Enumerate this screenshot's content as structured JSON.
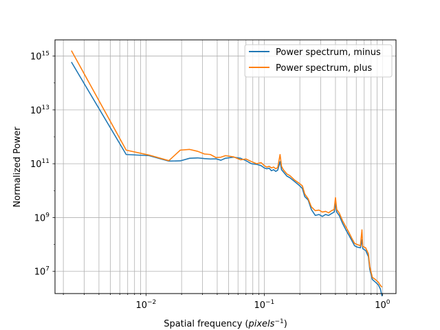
{
  "chart_data": {
    "type": "line",
    "xlabel": "Spatial frequency (pixels⁻¹)",
    "xlabel_main": "Spatial frequency (",
    "xlabel_italic": "pixels",
    "xlabel_sup": "−1",
    "xlabel_close": ")",
    "ylabel": "Normalized Power",
    "x_scale": "log",
    "y_scale": "log",
    "xlim": [
      0.0017,
      1.3
    ],
    "ylim": [
      1500000,
      4000000000000000.0
    ],
    "x_ticks": [
      {
        "base": "10",
        "exp": "−2",
        "value": 0.01
      },
      {
        "base": "10",
        "exp": "−1",
        "value": 0.1
      },
      {
        "base": "10",
        "exp": "0",
        "value": 1
      }
    ],
    "y_ticks": [
      {
        "base": "10",
        "exp": "7",
        "value": 10000000.0
      },
      {
        "base": "10",
        "exp": "9",
        "value": 1000000000.0
      },
      {
        "base": "10",
        "exp": "11",
        "value": 100000000000.0
      },
      {
        "base": "10",
        "exp": "13",
        "value": 10000000000000.0
      },
      {
        "base": "10",
        "exp": "15",
        "value": 1000000000000000.0
      }
    ],
    "grid": "both major and minor (x), major (y)",
    "legend_position": "upper right",
    "series": [
      {
        "name": "Power spectrum, minus",
        "color": "#1f77b4",
        "points": [
          [
            0.00234,
            600000000000000.0
          ],
          [
            0.0068,
            220000000000.0
          ],
          [
            0.0106,
            200000000000.0
          ],
          [
            0.0156,
            125000000000.0
          ],
          [
            0.0195,
            128000000000.0
          ],
          [
            0.0234,
            160000000000.0
          ],
          [
            0.0273,
            165000000000.0
          ],
          [
            0.0312,
            155000000000.0
          ],
          [
            0.035,
            150000000000.0
          ],
          [
            0.039,
            152000000000.0
          ],
          [
            0.043,
            135000000000.0
          ],
          [
            0.047,
            160000000000.0
          ],
          [
            0.055,
            175000000000.0
          ],
          [
            0.063,
            160000000000.0
          ],
          [
            0.07,
            130000000000.0
          ],
          [
            0.078,
            100000000000.0
          ],
          [
            0.086,
            95000000000.0
          ],
          [
            0.094,
            85000000000.0
          ],
          [
            0.1,
            70000000000.0
          ],
          [
            0.105,
            65000000000.0
          ],
          [
            0.11,
            68000000000.0
          ],
          [
            0.115,
            55000000000.0
          ],
          [
            0.12,
            60000000000.0
          ],
          [
            0.125,
            52000000000.0
          ],
          [
            0.13,
            58000000000.0
          ],
          [
            0.136,
            120000000000.0
          ],
          [
            0.14,
            60000000000.0
          ],
          [
            0.145,
            50000000000.0
          ],
          [
            0.155,
            35000000000.0
          ],
          [
            0.165,
            30000000000.0
          ],
          [
            0.18,
            22000000000.0
          ],
          [
            0.2,
            15000000000.0
          ],
          [
            0.21,
            12000000000.0
          ],
          [
            0.22,
            6000000000.0
          ],
          [
            0.235,
            4500000000.0
          ],
          [
            0.25,
            2000000000.0
          ],
          [
            0.27,
            1200000000.0
          ],
          [
            0.29,
            1300000000.0
          ],
          [
            0.31,
            1100000000.0
          ],
          [
            0.33,
            1300000000.0
          ],
          [
            0.35,
            1200000000.0
          ],
          [
            0.37,
            1400000000.0
          ],
          [
            0.39,
            1600000000.0
          ],
          [
            0.4,
            3500000000.0
          ],
          [
            0.41,
            1600000000.0
          ],
          [
            0.43,
            1200000000.0
          ],
          [
            0.46,
            600000000.0
          ],
          [
            0.49,
            350000000.0
          ],
          [
            0.52,
            220000000.0
          ],
          [
            0.55,
            140000000.0
          ],
          [
            0.58,
            90000000.0
          ],
          [
            0.61,
            80000000.0
          ],
          [
            0.65,
            75000000.0
          ],
          [
            0.67,
            150000000.0
          ],
          [
            0.68,
            70000000.0
          ],
          [
            0.72,
            60000000.0
          ],
          [
            0.76,
            35000000.0
          ],
          [
            0.78,
            12000000.0
          ],
          [
            0.82,
            5000000.0
          ],
          [
            0.87,
            4000000.0
          ],
          [
            0.92,
            3200000.0
          ],
          [
            0.96,
            2200000.0
          ],
          [
            0.99,
            1200000.0
          ]
        ]
      },
      {
        "name": "Power spectrum, plus",
        "color": "#ff7f0e",
        "points": [
          [
            0.00234,
            1600000000000000.0
          ],
          [
            0.0068,
            320000000000.0
          ],
          [
            0.0106,
            210000000000.0
          ],
          [
            0.0156,
            130000000000.0
          ],
          [
            0.0195,
            320000000000.0
          ],
          [
            0.0234,
            340000000000.0
          ],
          [
            0.0273,
            290000000000.0
          ],
          [
            0.0312,
            230000000000.0
          ],
          [
            0.035,
            220000000000.0
          ],
          [
            0.039,
            170000000000.0
          ],
          [
            0.043,
            175000000000.0
          ],
          [
            0.047,
            200000000000.0
          ],
          [
            0.055,
            180000000000.0
          ],
          [
            0.063,
            140000000000.0
          ],
          [
            0.07,
            150000000000.0
          ],
          [
            0.078,
            120000000000.0
          ],
          [
            0.086,
            100000000000.0
          ],
          [
            0.094,
            110000000000.0
          ],
          [
            0.1,
            85000000000.0
          ],
          [
            0.105,
            75000000000.0
          ],
          [
            0.11,
            80000000000.0
          ],
          [
            0.115,
            70000000000.0
          ],
          [
            0.12,
            75000000000.0
          ],
          [
            0.125,
            65000000000.0
          ],
          [
            0.13,
            72000000000.0
          ],
          [
            0.136,
            220000000000.0
          ],
          [
            0.14,
            80000000000.0
          ],
          [
            0.145,
            60000000000.0
          ],
          [
            0.155,
            42000000000.0
          ],
          [
            0.165,
            36000000000.0
          ],
          [
            0.18,
            25000000000.0
          ],
          [
            0.2,
            18000000000.0
          ],
          [
            0.21,
            15000000000.0
          ],
          [
            0.22,
            7500000000.0
          ],
          [
            0.235,
            5000000000.0
          ],
          [
            0.25,
            2500000000.0
          ],
          [
            0.27,
            1800000000.0
          ],
          [
            0.29,
            1900000000.0
          ],
          [
            0.31,
            1600000000.0
          ],
          [
            0.33,
            1700000000.0
          ],
          [
            0.35,
            1500000000.0
          ],
          [
            0.37,
            1800000000.0
          ],
          [
            0.39,
            2000000000.0
          ],
          [
            0.4,
            5500000000.0
          ],
          [
            0.41,
            2000000000.0
          ],
          [
            0.43,
            1500000000.0
          ],
          [
            0.46,
            750000000.0
          ],
          [
            0.49,
            450000000.0
          ],
          [
            0.52,
            280000000.0
          ],
          [
            0.55,
            170000000.0
          ],
          [
            0.58,
            110000000.0
          ],
          [
            0.61,
            100000000.0
          ],
          [
            0.65,
            90000000.0
          ],
          [
            0.67,
            350000000.0
          ],
          [
            0.68,
            85000000.0
          ],
          [
            0.72,
            75000000.0
          ],
          [
            0.76,
            45000000.0
          ],
          [
            0.78,
            15000000.0
          ],
          [
            0.82,
            6000000.0
          ],
          [
            0.87,
            5000000.0
          ],
          [
            0.92,
            4000000.0
          ],
          [
            0.96,
            3000000.0
          ],
          [
            0.99,
            2600000.0
          ]
        ]
      }
    ]
  }
}
